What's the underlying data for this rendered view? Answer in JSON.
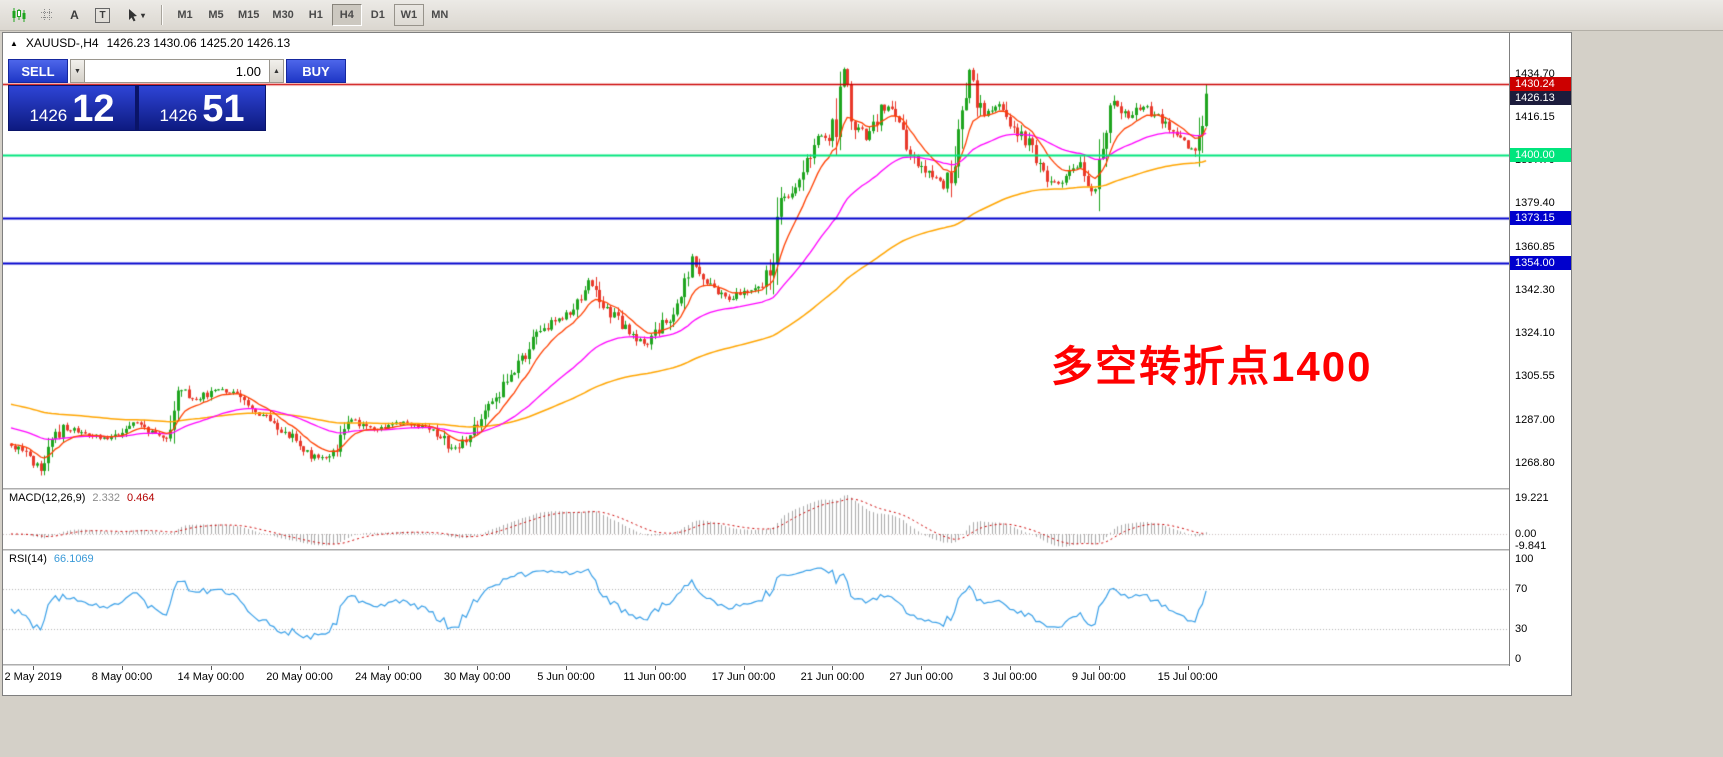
{
  "toolbar": {
    "caret": "▾",
    "tools": [
      {
        "name": "chart-style",
        "icon": "candlestick-chart-icon"
      },
      {
        "name": "grid",
        "icon": "grid-icon"
      },
      {
        "name": "arrow-tool",
        "label": "A"
      },
      {
        "name": "text-tool",
        "label": "T"
      },
      {
        "name": "cursor-tool",
        "icon": "cursor-icon"
      }
    ],
    "timeframes": [
      {
        "label": "M1",
        "state": "normal"
      },
      {
        "label": "M5",
        "state": "normal"
      },
      {
        "label": "M15",
        "state": "normal"
      },
      {
        "label": "M30",
        "state": "normal"
      },
      {
        "label": "H1",
        "state": "normal"
      },
      {
        "label": "H4",
        "state": "active"
      },
      {
        "label": "D1",
        "state": "normal"
      },
      {
        "label": "W1",
        "state": "focused"
      },
      {
        "label": "MN",
        "state": "normal"
      }
    ]
  },
  "chart_header": {
    "marker": "▲",
    "symbol_period": "XAUUSD-,H4",
    "ohlc_text": "1426.23 1430.06 1425.20 1426.13"
  },
  "one_click_trading": {
    "sell_label": "SELL",
    "buy_label": "BUY",
    "volume": "1.00",
    "spinner_down": "▼",
    "spinner_up": "▲",
    "bid_main": "1426",
    "bid_pips": "12",
    "ask_main": "1426",
    "ask_pips": "51"
  },
  "annotation": {
    "text": "多空转折点1400",
    "color": "#ff0000"
  },
  "chart_data": {
    "type": "candlestick",
    "symbol": "XAUUSD-",
    "timeframe": "H4",
    "last_ohlc": {
      "open": 1426.23,
      "high": 1430.06,
      "low": 1425.2,
      "close": 1426.13
    },
    "y_ticks": [
      1434.7,
      1416.15,
      1397.7,
      1379.4,
      1360.85,
      1342.3,
      1324.1,
      1305.55,
      1287.0,
      1268.8
    ],
    "y_range": [
      1258,
      1452
    ],
    "x_labels": [
      "2 May 2019",
      "8 May 00:00",
      "14 May 00:00",
      "20 May 00:00",
      "24 May 00:00",
      "30 May 00:00",
      "5 Jun 00:00",
      "11 Jun 00:00",
      "17 Jun 00:00",
      "21 Jun 00:00",
      "27 Jun 00:00",
      "3 Jul 00:00",
      "9 Jul 00:00",
      "15 Jul 00:00"
    ],
    "horizontal_levels": [
      {
        "price": 1430.24,
        "color": "#cc0000",
        "badge_text": "1430.24",
        "width": 1.5
      },
      {
        "price": 1400.0,
        "color": "#00e57d",
        "badge_text": "1400.00",
        "width": 1.8
      },
      {
        "price": 1373.15,
        "color": "#0000cd",
        "badge_text": "1373.15",
        "width": 2
      },
      {
        "price": 1354.0,
        "color": "#0000cd",
        "badge_text": "1354.00",
        "width": 2
      }
    ],
    "current_price_badge": {
      "price": 1426.13,
      "text": "1426.13",
      "bg": "#1c1c3c"
    },
    "candle_count": 324,
    "candle_colors": {
      "up": "#1fa51f",
      "down": "#e8392b"
    },
    "price_path": [
      [
        0,
        1276
      ],
      [
        4,
        1272
      ],
      [
        8,
        1266
      ],
      [
        11,
        1276
      ],
      [
        14,
        1284
      ],
      [
        18,
        1282
      ],
      [
        22,
        1280
      ],
      [
        26,
        1279
      ],
      [
        30,
        1283
      ],
      [
        34,
        1286
      ],
      [
        38,
        1282
      ],
      [
        42,
        1280
      ],
      [
        44,
        1290
      ],
      [
        45,
        1302
      ],
      [
        47,
        1298
      ],
      [
        50,
        1296
      ],
      [
        53,
        1298
      ],
      [
        56,
        1300
      ],
      [
        60,
        1299
      ],
      [
        63,
        1295
      ],
      [
        66,
        1291
      ],
      [
        70,
        1287
      ],
      [
        74,
        1282
      ],
      [
        78,
        1276
      ],
      [
        81,
        1272
      ],
      [
        84,
        1271
      ],
      [
        87,
        1273
      ],
      [
        90,
        1284
      ],
      [
        92,
        1287
      ],
      [
        95,
        1284
      ],
      [
        98,
        1283
      ],
      [
        102,
        1285
      ],
      [
        106,
        1286
      ],
      [
        110,
        1284
      ],
      [
        114,
        1283
      ],
      [
        117,
        1278
      ],
      [
        119,
        1274
      ],
      [
        121,
        1275
      ],
      [
        124,
        1280
      ],
      [
        127,
        1287
      ],
      [
        130,
        1295
      ],
      [
        133,
        1301
      ],
      [
        136,
        1308
      ],
      [
        139,
        1315
      ],
      [
        142,
        1322
      ],
      [
        145,
        1327
      ],
      [
        148,
        1330
      ],
      [
        151,
        1334
      ],
      [
        154,
        1340
      ],
      [
        156,
        1346
      ],
      [
        158,
        1342
      ],
      [
        160,
        1336
      ],
      [
        163,
        1331
      ],
      [
        166,
        1326
      ],
      [
        169,
        1321
      ],
      [
        172,
        1320
      ],
      [
        175,
        1326
      ],
      [
        178,
        1332
      ],
      [
        181,
        1341
      ],
      [
        183,
        1350
      ],
      [
        184,
        1356
      ],
      [
        186,
        1350
      ],
      [
        188,
        1344
      ],
      [
        191,
        1342
      ],
      [
        194,
        1338
      ],
      [
        197,
        1341
      ],
      [
        200,
        1343
      ],
      [
        203,
        1346
      ],
      [
        205,
        1352
      ],
      [
        206,
        1360
      ],
      [
        207,
        1378
      ],
      [
        208,
        1387
      ],
      [
        209,
        1381
      ],
      [
        211,
        1383
      ],
      [
        213,
        1390
      ],
      [
        215,
        1398
      ],
      [
        217,
        1406
      ],
      [
        219,
        1409
      ],
      [
        221,
        1405
      ],
      [
        223,
        1416
      ],
      [
        225,
        1437
      ],
      [
        226,
        1430
      ],
      [
        227,
        1420
      ],
      [
        229,
        1412
      ],
      [
        231,
        1407
      ],
      [
        233,
        1412
      ],
      [
        235,
        1419
      ],
      [
        237,
        1420
      ],
      [
        239,
        1416
      ],
      [
        241,
        1410
      ],
      [
        243,
        1402
      ],
      [
        245,
        1397
      ],
      [
        247,
        1393
      ],
      [
        249,
        1391
      ],
      [
        251,
        1388
      ],
      [
        252,
        1385
      ],
      [
        254,
        1394
      ],
      [
        256,
        1410
      ],
      [
        258,
        1429
      ],
      [
        259,
        1436
      ],
      [
        260,
        1430
      ],
      [
        261,
        1424
      ],
      [
        263,
        1418
      ],
      [
        265,
        1420
      ],
      [
        267,
        1422
      ],
      [
        269,
        1416
      ],
      [
        271,
        1412
      ],
      [
        273,
        1408
      ],
      [
        275,
        1404
      ],
      [
        277,
        1398
      ],
      [
        279,
        1392
      ],
      [
        281,
        1389
      ],
      [
        283,
        1387
      ],
      [
        285,
        1390
      ],
      [
        287,
        1394
      ],
      [
        289,
        1396
      ],
      [
        291,
        1387
      ],
      [
        292,
        1383
      ],
      [
        294,
        1398
      ],
      [
        296,
        1413
      ],
      [
        298,
        1423
      ],
      [
        300,
        1419
      ],
      [
        302,
        1416
      ],
      [
        304,
        1419
      ],
      [
        306,
        1421
      ],
      [
        308,
        1418
      ],
      [
        310,
        1416
      ],
      [
        312,
        1414
      ],
      [
        314,
        1409
      ],
      [
        316,
        1406
      ],
      [
        318,
        1404
      ],
      [
        320,
        1402
      ],
      [
        321,
        1406
      ],
      [
        322,
        1416
      ],
      [
        323,
        1426.13
      ]
    ],
    "moving_averages": [
      {
        "name": "fast",
        "period": 10,
        "seed": 1277,
        "color": "#ff4000",
        "width": 1.3
      },
      {
        "name": "medium",
        "period": 40,
        "seed": 1284,
        "color": "#ff00ff",
        "width": 1.3
      },
      {
        "name": "slow",
        "period": 110,
        "seed": 1294,
        "color": "#ffa500",
        "width": 1.5
      }
    ],
    "macd": {
      "label": "MACD(12,26,9)",
      "value_main": "2.332",
      "value_signal": "0.464",
      "scale_labels": [
        "19.221",
        "0.00",
        "-9.841"
      ],
      "scale_max": 19.221,
      "histogram_color": "#ababab",
      "signal_color": "#cc0000"
    },
    "rsi": {
      "label": "RSI(14)",
      "value": "66.1069",
      "levels": [
        70,
        30
      ],
      "scale_labels": [
        "100",
        "70",
        "30",
        "0"
      ],
      "line_color": "#3aa0e8"
    }
  }
}
